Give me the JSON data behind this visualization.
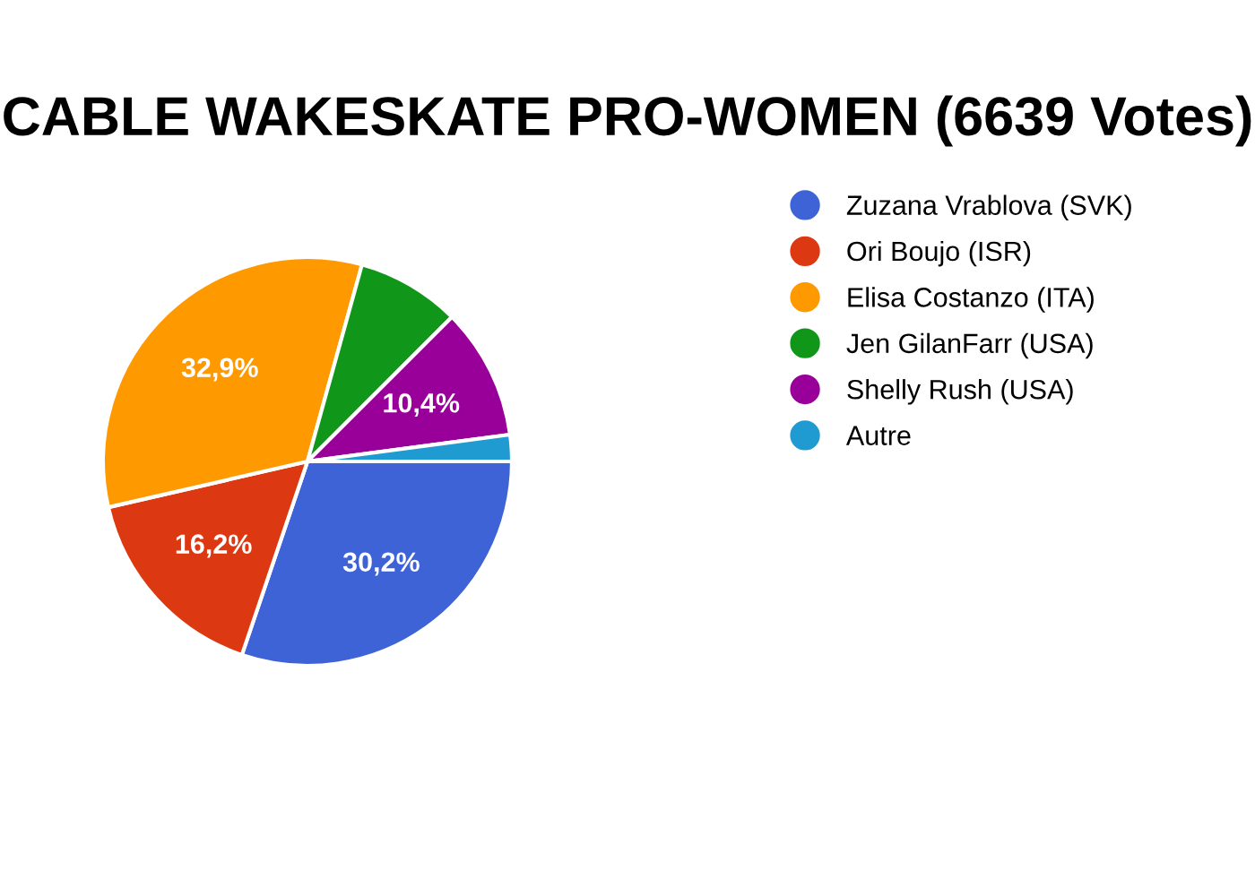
{
  "chart_data": {
    "type": "pie",
    "title": "CABLE WAKESKATE PRO-WOMEN (6639 Votes)",
    "categories": [
      "Zuzana Vrablova (SVK)",
      "Ori Boujo (ISR)",
      "Elisa Costanzo (ITA)",
      "Jen GilanFarr (USA)",
      "Shelly Rush (USA)",
      "Autre"
    ],
    "values": [
      30.2,
      16.2,
      32.9,
      8.2,
      10.4,
      2.1
    ],
    "value_labels": [
      "30,2%",
      "16,2%",
      "32,9%",
      null,
      "10,4%",
      null
    ],
    "colors": [
      "#3d63d6",
      "#dc3912",
      "#ff9900",
      "#109618",
      "#990099",
      "#1f9bd1"
    ],
    "legend": "right"
  }
}
